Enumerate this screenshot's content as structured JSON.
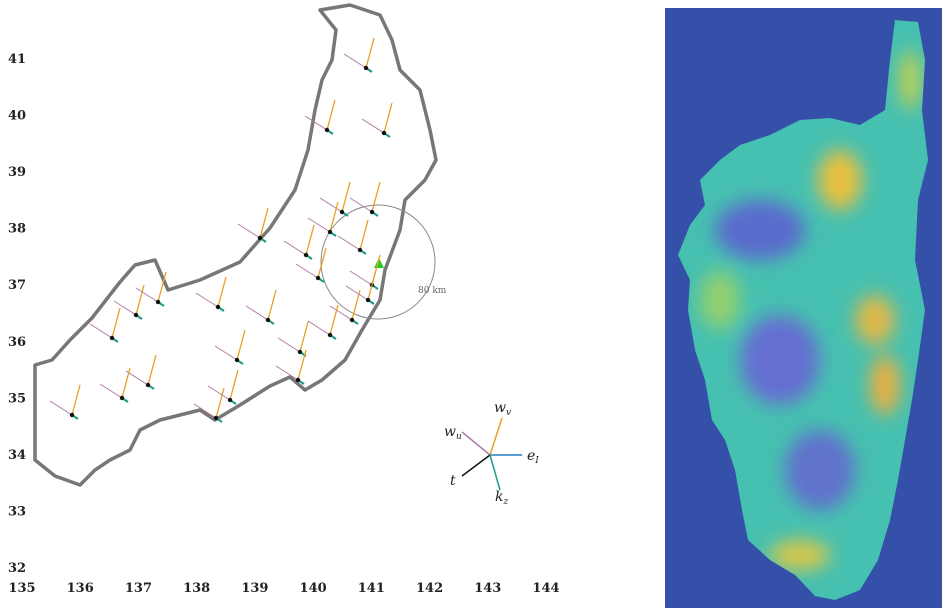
{
  "map": {
    "xlim": [
      135,
      144
    ],
    "ylim": [
      32,
      41
    ],
    "xticks": [
      135,
      136,
      137,
      138,
      139,
      140,
      141,
      142,
      143,
      144
    ],
    "yticks": [
      32,
      33,
      34,
      35,
      36,
      37,
      38,
      39,
      40,
      41
    ],
    "scale_label": "80 km",
    "glyph_legend": [
      {
        "base": "w",
        "sub": "u"
      },
      {
        "base": "w",
        "sub": "v"
      },
      {
        "base": "e",
        "sub": "I"
      },
      {
        "base": "t",
        "sub": ""
      },
      {
        "base": "k",
        "sub": "z"
      }
    ]
  }
}
